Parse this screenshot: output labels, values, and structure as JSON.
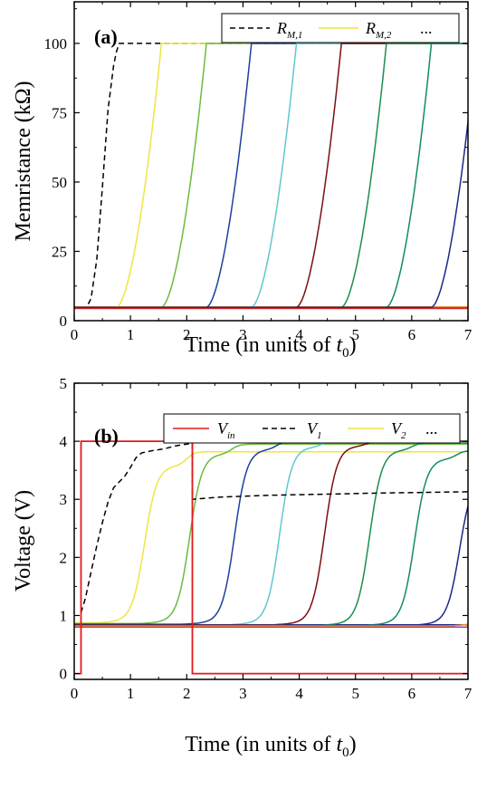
{
  "chart_data": [
    {
      "type": "line",
      "panel_label": "(a)",
      "xlabel": "Time (in units of ",
      "xlabel_symbol": "t",
      "xlabel_sub": "0",
      "xlabel_close": ")",
      "ylabel": "Memristance (kΩ)",
      "xlim": [
        0,
        7
      ],
      "ylim": [
        0,
        115
      ],
      "xticks": [
        0,
        1,
        2,
        3,
        4,
        5,
        6,
        7
      ],
      "yticks": [
        0,
        25,
        50,
        75,
        100
      ],
      "legend_position": "top-right",
      "legend": [
        {
          "main": "R",
          "sub": "M,1",
          "color": "#000000",
          "dashed": true
        },
        {
          "main": "R",
          "sub": "M,2",
          "color": "#f0e442",
          "dashed": false
        },
        {
          "main": "...",
          "sub": "",
          "color": "",
          "dashed": false
        }
      ],
      "baseline_lines": [
        {
          "y": 5.0,
          "color": "#e8a53a"
        },
        {
          "y": 4.7,
          "color": "#a040a0"
        },
        {
          "y": 4.4,
          "color": "#d42020"
        }
      ],
      "series": [
        {
          "color": "#000000",
          "dashed": true,
          "points": [
            [
              0.25,
              6
            ],
            [
              0.3,
              8
            ],
            [
              0.4,
              22
            ],
            [
              0.5,
              48
            ],
            [
              0.6,
              76
            ],
            [
              0.7,
              92
            ],
            [
              0.75,
              97
            ],
            [
              0.8,
              100
            ],
            [
              7,
              100
            ]
          ]
        },
        {
          "color": "#f0e442",
          "dashed": false,
          "t0": 0.75,
          "t1": 1.55
        },
        {
          "color": "#6cbb3c",
          "dashed": false,
          "t0": 1.55,
          "t1": 2.35
        },
        {
          "color": "#1f3f9f",
          "dashed": false,
          "t0": 2.35,
          "t1": 3.15
        },
        {
          "color": "#5fc8d0",
          "dashed": false,
          "t0": 3.15,
          "t1": 3.95
        },
        {
          "color": "#7a0f0f",
          "dashed": false,
          "t0": 3.95,
          "t1": 4.75
        },
        {
          "color": "#1a8f4a",
          "dashed": false,
          "t0": 4.75,
          "t1": 5.55
        },
        {
          "color": "#138a6b",
          "dashed": false,
          "t0": 5.55,
          "t1": 6.35
        },
        {
          "color": "#1a2a8a",
          "dashed": false,
          "t0": 6.35,
          "t1": 7.15
        }
      ]
    },
    {
      "type": "line",
      "panel_label": "(b)",
      "xlabel": "Time (in units of ",
      "xlabel_symbol": "t",
      "xlabel_sub": "0",
      "xlabel_close": ")",
      "ylabel": "Voltage (V)",
      "xlim": [
        0,
        7
      ],
      "ylim": [
        -0.1,
        5
      ],
      "xticks": [
        0,
        1,
        2,
        3,
        4,
        5,
        6,
        7
      ],
      "yticks": [
        0,
        1,
        2,
        3,
        4,
        5
      ],
      "legend_position": "top-right",
      "legend": [
        {
          "main": "V",
          "sub": "in",
          "color": "#e31a1c",
          "dashed": false
        },
        {
          "main": "V",
          "sub": "1",
          "color": "#000000",
          "dashed": true
        },
        {
          "main": "V",
          "sub": "2",
          "color": "#f0e442",
          "dashed": false
        },
        {
          "main": "...",
          "sub": "",
          "color": "",
          "dashed": false
        }
      ],
      "vin": {
        "color": "#e31a1c",
        "points": [
          [
            0.0,
            0
          ],
          [
            0.12,
            0
          ],
          [
            0.12,
            4.0
          ],
          [
            2.1,
            4.0
          ],
          [
            2.1,
            0
          ],
          [
            7.0,
            0
          ]
        ]
      },
      "flat_lines": [
        {
          "y": 0.8,
          "color": "#a040a0"
        },
        {
          "y": 0.84,
          "color": "#1a2a8a"
        }
      ],
      "v1": {
        "color": "#000000",
        "dashed": true,
        "points": [
          [
            0.12,
            1.05
          ],
          [
            0.2,
            1.3
          ],
          [
            0.3,
            1.75
          ],
          [
            0.4,
            2.2
          ],
          [
            0.5,
            2.6
          ],
          [
            0.6,
            2.95
          ],
          [
            0.7,
            3.2
          ],
          [
            0.8,
            3.3
          ],
          [
            0.9,
            3.4
          ],
          [
            1.0,
            3.55
          ],
          [
            1.1,
            3.72
          ],
          [
            1.2,
            3.8
          ],
          [
            1.4,
            3.84
          ],
          [
            1.6,
            3.87
          ],
          [
            1.8,
            3.92
          ],
          [
            2.0,
            3.95
          ],
          [
            2.1,
            3.97
          ],
          [
            2.1,
            3.0
          ],
          [
            2.6,
            3.04
          ],
          [
            3.5,
            3.07
          ],
          [
            4.5,
            3.09
          ],
          [
            5.5,
            3.11
          ],
          [
            7.0,
            3.13
          ]
        ]
      },
      "stage_series": [
        {
          "color": "#f0e442",
          "t": 1.25,
          "final": 3.82,
          "bump": 3.58,
          "start": 0.87
        },
        {
          "color": "#6cbb3c",
          "t": 2.05,
          "final": 3.95,
          "bump": 3.78,
          "start": 0.86
        },
        {
          "color": "#1f3f9f",
          "t": 2.85,
          "final": 4.0,
          "bump": 3.86,
          "start": 0.85
        },
        {
          "color": "#5fc8d0",
          "t": 3.65,
          "final": 4.0,
          "bump": 3.9,
          "start": 0.84
        },
        {
          "color": "#7a0f0f",
          "t": 4.45,
          "final": 4.0,
          "bump": 3.92,
          "start": 0.84
        },
        {
          "color": "#1a8f4a",
          "t": 5.25,
          "final": 3.97,
          "bump": 3.85,
          "start": 0.83
        },
        {
          "color": "#138a6b",
          "t": 6.05,
          "final": 3.84,
          "bump": 3.7,
          "start": 0.83
        },
        {
          "color": "#1a2a8a",
          "t": 6.85,
          "final": 3.6,
          "bump": 3.4,
          "start": 0.83
        },
        {
          "color": "#f08a24",
          "t": 7.55,
          "final": 3.2,
          "bump": 3.0,
          "start": 0.82
        }
      ]
    }
  ]
}
